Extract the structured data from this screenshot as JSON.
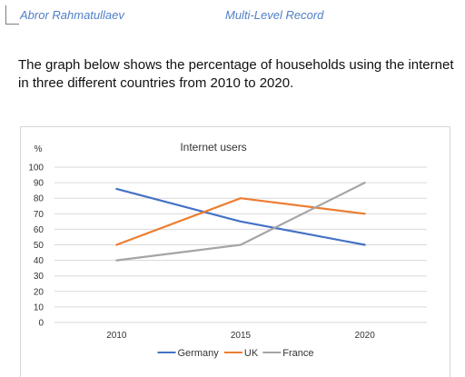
{
  "header": {
    "author": "Abror Rahmatullaev",
    "record": "Multi-Level Record"
  },
  "task": {
    "text": "The graph below shows the percentage of households using the internet in three different countries from 2010 to 2020."
  },
  "chart_data": {
    "type": "line",
    "title": "Internet users",
    "ylabel": "%",
    "xlabel": "",
    "x": [
      "2010",
      "2015",
      "2020"
    ],
    "ylim": [
      0,
      100
    ],
    "yticks": [
      0,
      10,
      20,
      30,
      40,
      50,
      60,
      70,
      80,
      90,
      100
    ],
    "grid": true,
    "legend_position": "bottom",
    "series": [
      {
        "name": "Germany",
        "values": [
          86,
          65,
          50
        ],
        "color": "#4472c4"
      },
      {
        "name": "UK",
        "values": [
          50,
          80,
          70
        ],
        "color": "#ed7d31"
      },
      {
        "name": "France",
        "values": [
          40,
          50,
          90
        ],
        "color": "#a5a5a5"
      }
    ]
  }
}
